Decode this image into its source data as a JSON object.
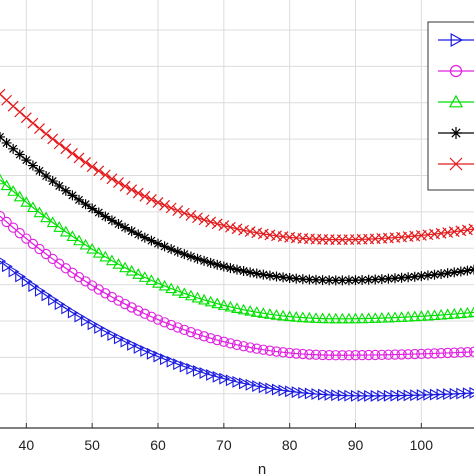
{
  "chart_data": {
    "type": "line",
    "title": "",
    "xlabel": "n",
    "ylabel": "",
    "xlim": [
      36,
      108
    ],
    "ylim": [
      0,
      10
    ],
    "x_ticks": [
      40,
      50,
      60,
      70,
      80,
      90,
      100
    ],
    "grid": true,
    "legend": {
      "placement": "top-right",
      "entries_visible": false
    },
    "series": [
      {
        "color": "#e41a1c",
        "marker": "x",
        "x_start": 36,
        "x_end": 108,
        "step": 1,
        "min_x": 88,
        "y_start": 7.8,
        "y_min": 4.4,
        "y_end": 4.65
      },
      {
        "color": "#000000",
        "marker": "asterisk",
        "x_start": 36,
        "x_end": 108,
        "step": 1,
        "min_x": 88,
        "y_start": 6.8,
        "y_min": 3.45,
        "y_end": 3.7
      },
      {
        "color": "#00e000",
        "marker": "triangle-up",
        "x_start": 36,
        "x_end": 108,
        "step": 1,
        "min_x": 88,
        "y_start": 5.8,
        "y_min": 2.55,
        "y_end": 2.7
      },
      {
        "color": "#e020e0",
        "marker": "circle",
        "x_start": 36,
        "x_end": 108,
        "step": 1,
        "min_x": 88,
        "y_start": 4.95,
        "y_min": 1.7,
        "y_end": 1.78
      },
      {
        "color": "#1a1ae0",
        "marker": "triangle-right",
        "x_start": 36,
        "x_end": 108,
        "step": 1,
        "min_x": 92,
        "y_start": 3.9,
        "y_min": 0.75,
        "y_end": 0.82
      }
    ]
  }
}
